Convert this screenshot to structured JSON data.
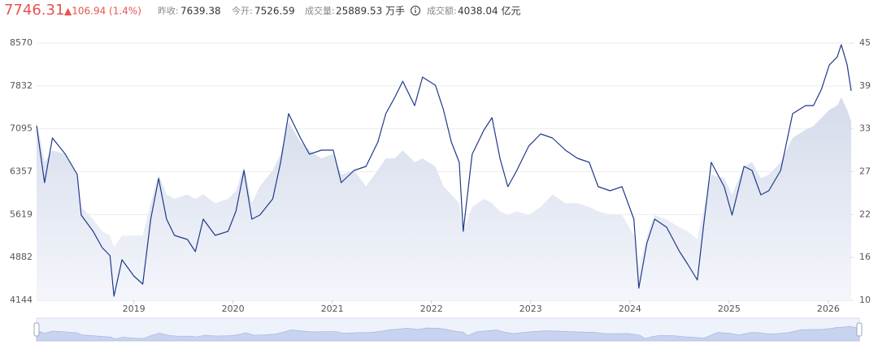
{
  "quote": {
    "price": "7746.31",
    "change": "▲106.94 (1.4%)",
    "items": [
      {
        "label": "昨收:",
        "value": "7639.38"
      },
      {
        "label": "今开:",
        "value": "7526.59"
      },
      {
        "label": "成交量:",
        "value": "25889.53 万手"
      },
      {
        "label": "成交额:",
        "value": "4038.04 亿元"
      }
    ]
  },
  "chart_data": {
    "type": "line",
    "x": [
      2018.02,
      2018.1,
      2018.18,
      2018.31,
      2018.43,
      2018.47,
      2018.59,
      2018.68,
      2018.76,
      2018.8,
      2018.88,
      2019.0,
      2019.09,
      2019.17,
      2019.25,
      2019.33,
      2019.41,
      2019.54,
      2019.62,
      2019.7,
      2019.82,
      2019.95,
      2020.03,
      2020.11,
      2020.19,
      2020.27,
      2020.4,
      2020.48,
      2020.56,
      2020.68,
      2020.77,
      2020.89,
      2021.01,
      2021.09,
      2021.22,
      2021.34,
      2021.46,
      2021.54,
      2021.63,
      2021.71,
      2021.83,
      2021.91,
      2022.04,
      2022.12,
      2022.2,
      2022.28,
      2022.32,
      2022.41,
      2022.53,
      2022.61,
      2022.69,
      2022.77,
      2022.86,
      2022.98,
      2023.1,
      2023.22,
      2023.35,
      2023.47,
      2023.59,
      2023.68,
      2023.8,
      2023.92,
      2024.04,
      2024.09,
      2024.17,
      2024.25,
      2024.37,
      2024.5,
      2024.58,
      2024.68,
      2024.74,
      2024.82,
      2024.95,
      2025.03,
      2025.15,
      2025.23,
      2025.32,
      2025.4,
      2025.52,
      2025.64,
      2025.77,
      2025.85,
      2025.93,
      2026.01,
      2026.09,
      2026.13,
      2026.19,
      2026.23
    ],
    "series": [
      {
        "kind": "line",
        "axis": "y",
        "color": "#1f3a8a",
        "values": [
          7146,
          6168,
          6936,
          6657,
          6308,
          5610,
          5330,
          5051,
          4912,
          4214,
          4842,
          4563,
          4423,
          5540,
          6238,
          5540,
          5261,
          5191,
          4982,
          5540,
          5261,
          5330,
          5680,
          6378,
          5540,
          5610,
          5889,
          6517,
          7355,
          6936,
          6657,
          6727,
          6727,
          6168,
          6378,
          6448,
          6866,
          7355,
          7634,
          7913,
          7494,
          7983,
          7843,
          7425,
          6866,
          6517,
          5330,
          6657,
          7076,
          7285,
          6587,
          6099,
          6378,
          6796,
          7006,
          6936,
          6727,
          6587,
          6517,
          6099,
          6029,
          6099,
          5540,
          4353,
          5121,
          5540,
          5400,
          4982,
          4772,
          4493,
          5400,
          6517,
          6099,
          5610,
          6448,
          6378,
          5959,
          6029,
          6378,
          7355,
          7494,
          7494,
          7773,
          8192,
          8331,
          8541,
          8192,
          7746
        ]
      },
      {
        "kind": "area",
        "axis": "y2",
        "color": "#d9deec",
        "values": [
          34.3,
          28.8,
          30.4,
          29.9,
          27.1,
          22.7,
          21.0,
          19.4,
          18.8,
          17.2,
          18.8,
          18.8,
          18.8,
          23.2,
          27.1,
          24.4,
          23.8,
          24.4,
          23.8,
          24.4,
          23.2,
          23.8,
          24.9,
          28.2,
          23.2,
          25.5,
          27.7,
          29.9,
          34.3,
          31.5,
          30.4,
          29.3,
          29.9,
          27.1,
          27.7,
          25.5,
          27.7,
          29.3,
          29.3,
          30.4,
          28.8,
          29.3,
          28.2,
          25.5,
          24.4,
          23.2,
          19.4,
          22.7,
          23.8,
          23.2,
          22.1,
          21.6,
          22.1,
          21.6,
          22.7,
          24.4,
          23.2,
          23.2,
          22.7,
          22.1,
          21.6,
          21.6,
          18.8,
          14.4,
          18.8,
          21.6,
          21.0,
          19.9,
          19.4,
          18.3,
          22.1,
          27.1,
          26.6,
          24.4,
          28.2,
          28.8,
          26.6,
          27.1,
          28.8,
          32.1,
          33.2,
          33.7,
          34.8,
          35.9,
          36.5,
          37.6,
          35.9,
          34.3
        ]
      }
    ],
    "xlim": [
      2018.02,
      2026.23
    ],
    "xticks": [
      2019,
      2020,
      2021,
      2022,
      2023,
      2024,
      2025,
      2026
    ],
    "ylim": [
      4144,
      8570
    ],
    "yticks": [
      4144,
      4882,
      5619,
      6357,
      7095,
      7832,
      8570
    ],
    "y2lim": [
      10,
      45
    ],
    "y2ticks": [
      10,
      {
        "value": 15.83,
        "label": "16"
      },
      {
        "value": 21.67,
        "label": "22"
      },
      {
        "value": 27.5,
        "label": "27"
      },
      {
        "value": 33.33,
        "label": "33"
      },
      {
        "value": 39.17,
        "label": "39"
      },
      45
    ],
    "grid": true
  }
}
